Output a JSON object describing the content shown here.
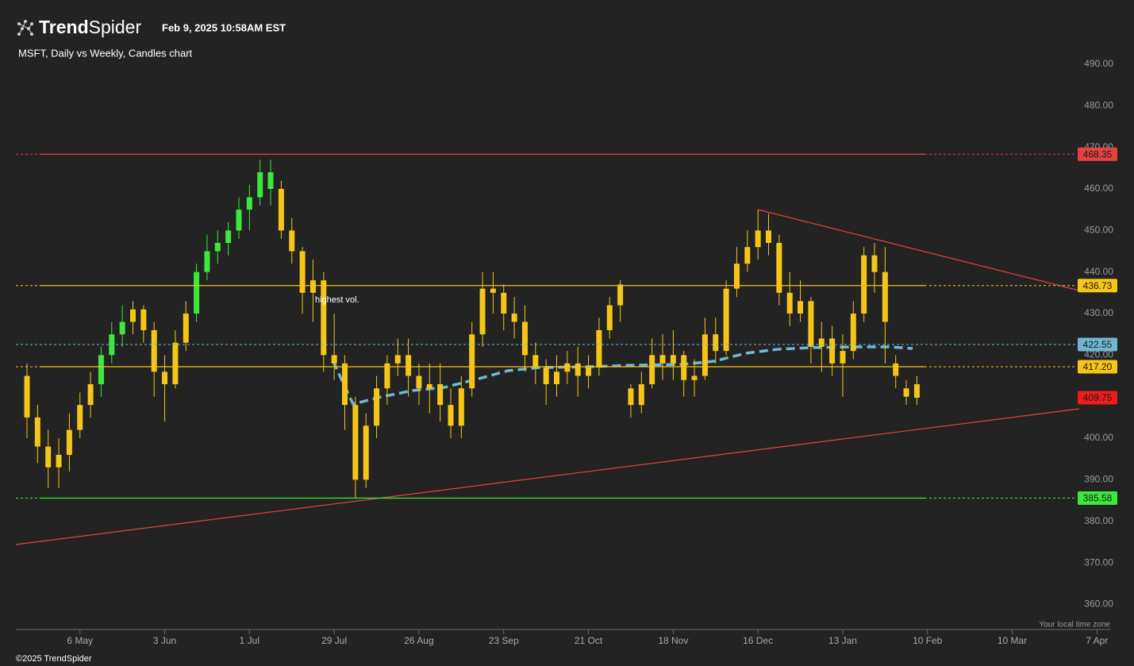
{
  "header": {
    "brand_bold": "Trend",
    "brand_light": "Spider",
    "timestamp": "Feb 9, 2025 10:58AM EST",
    "footer": "©2025 TrendSpider"
  },
  "chart_data": {
    "type": "candlestick",
    "title": "MSFT, Daily vs Weekly, Candles chart",
    "annotation": "highest vol.",
    "timezone_note": "Your local time zone",
    "categories": [
      null,
      null,
      null,
      null,
      null,
      "6 May",
      null,
      null,
      null,
      null,
      null,
      null,
      null,
      "3 Jun",
      null,
      null,
      null,
      null,
      null,
      null,
      null,
      "1 Jul",
      null,
      null,
      null,
      null,
      null,
      null,
      null,
      "29 Jul",
      null,
      null,
      null,
      null,
      null,
      null,
      null,
      "26 Aug",
      null,
      null,
      null,
      null,
      null,
      null,
      null,
      "23 Sep",
      null,
      null,
      null,
      null,
      null,
      null,
      null,
      "21 Oct",
      null,
      null,
      null,
      null,
      null,
      null,
      null,
      "18 Nov",
      null,
      null,
      null,
      null,
      null,
      null,
      null,
      "16 Dec",
      null,
      null,
      null,
      null,
      null,
      null,
      null,
      "13 Jan",
      null,
      null,
      null,
      null,
      null,
      null,
      null,
      "10 Feb",
      null,
      null,
      null,
      null,
      null,
      null,
      null,
      "10 Mar",
      null,
      null,
      null,
      null,
      null,
      null,
      null,
      "7 Apr"
    ],
    "open": [
      415,
      405,
      398,
      393,
      396,
      402,
      408,
      413,
      420,
      425,
      428,
      431,
      426,
      416,
      413,
      423,
      430,
      440,
      445,
      447,
      450,
      455,
      458,
      464,
      460,
      450,
      445,
      435,
      438,
      420,
      418,
      408,
      390,
      403,
      412,
      418,
      420,
      415,
      412,
      413,
      408,
      403,
      412,
      425,
      436,
      435,
      430,
      428,
      420,
      417,
      413,
      416,
      418,
      415,
      417,
      426,
      432,
      412,
      408,
      413,
      420,
      418,
      420,
      414,
      415,
      425,
      421,
      436,
      442,
      446,
      450,
      447,
      435,
      430,
      433,
      422,
      424,
      418,
      421,
      430,
      444,
      440,
      415,
      412,
      413,
      null,
      null,
      null,
      null,
      null,
      null,
      null,
      null,
      null,
      null,
      null,
      null,
      null,
      null,
      null,
      null,
      null
    ],
    "high": [
      418,
      408,
      402,
      400,
      406,
      411,
      416,
      422,
      428,
      432,
      433,
      432,
      428,
      420,
      426,
      433,
      442,
      449,
      450,
      452,
      458,
      461,
      467,
      467,
      462,
      453,
      446,
      443,
      440,
      430,
      420,
      410,
      406,
      415,
      420,
      424,
      424,
      418,
      418,
      418,
      412,
      415,
      428,
      440,
      440,
      437,
      434,
      432,
      423,
      419,
      420,
      421,
      422,
      420,
      429,
      434,
      438,
      413,
      416,
      424,
      425,
      426,
      421,
      419,
      429,
      429,
      438,
      446,
      450,
      455,
      454,
      449,
      440,
      438,
      434,
      428,
      427,
      425,
      433,
      446,
      447,
      446,
      420,
      414,
      415,
      null,
      null,
      null,
      null,
      null,
      null,
      null,
      null,
      null,
      null,
      null,
      null,
      null,
      null,
      null,
      null,
      null
    ],
    "low": [
      400,
      394,
      388,
      388,
      392,
      400,
      405,
      410,
      418,
      422,
      425,
      423,
      410,
      404,
      412,
      421,
      428,
      438,
      442,
      444,
      448,
      450,
      456,
      456,
      448,
      442,
      430,
      428,
      416,
      414,
      402,
      385.58,
      388,
      400,
      408,
      415,
      410,
      408,
      406,
      404,
      400,
      400,
      410,
      422,
      430,
      426,
      424,
      416,
      413,
      408,
      410,
      413,
      410,
      412,
      415,
      424,
      428,
      405,
      406,
      412,
      414,
      414,
      410,
      410,
      414,
      418,
      420,
      434,
      440,
      443,
      444,
      432,
      427,
      428,
      418,
      416,
      415,
      410,
      419,
      428,
      435,
      418,
      412,
      408,
      408,
      null,
      null,
      null,
      null,
      null,
      null,
      null,
      null,
      null,
      null,
      null,
      null,
      null,
      null,
      null,
      null,
      null
    ],
    "close": [
      405,
      398,
      393,
      396,
      402,
      408,
      413,
      420,
      425,
      428,
      431,
      426,
      416,
      413,
      423,
      430,
      440,
      445,
      447,
      450,
      455,
      458,
      464,
      460,
      450,
      445,
      435,
      438,
      420,
      418,
      408,
      390,
      403,
      412,
      418,
      420,
      415,
      412,
      413,
      408,
      403,
      412,
      425,
      436,
      435,
      430,
      428,
      420,
      417,
      413,
      416,
      418,
      415,
      417,
      426,
      432,
      437,
      408,
      413,
      420,
      418,
      420,
      414,
      415,
      425,
      421,
      436,
      442,
      446,
      450,
      447,
      435,
      430,
      433,
      422,
      424,
      418,
      421,
      430,
      444,
      440,
      428,
      418,
      410,
      409.75,
      null,
      null,
      null,
      null,
      null,
      null,
      null,
      null,
      null,
      null,
      null,
      null,
      null,
      null,
      null,
      null,
      null
    ],
    "colors": [
      "#f5c518",
      "#f5c518",
      "#f5c518",
      "#f5c518",
      "#f5c518",
      "#f5c518",
      "#f5c518",
      "#3de83d",
      "#3de83d",
      "#3de83d",
      "#f5c518",
      "#f5c518",
      "#f5c518",
      "#f5c518",
      "#f5c518",
      "#f5c518",
      "#3de83d",
      "#3de83d",
      "#3de83d",
      "#3de83d",
      "#3de83d",
      "#3de83d",
      "#3de83d",
      "#3de83d",
      "#f5c518",
      "#f5c518",
      "#f5c518",
      "#f5c518",
      "#f5c518",
      "#f5c518",
      "#f5c518",
      "#f5c518",
      "#f5c518",
      "#f5c518",
      "#f5c518",
      "#f5c518",
      "#f5c518",
      "#f5c518",
      "#f5c518",
      "#f5c518",
      "#f5c518",
      "#f5c518",
      "#f5c518",
      "#f5c518",
      "#f5c518",
      "#f5c518",
      "#f5c518",
      "#f5c518",
      "#f5c518",
      "#f5c518",
      "#f5c518",
      "#f5c518",
      "#f5c518",
      "#f5c518",
      "#f5c518",
      "#f5c518",
      "#f5c518",
      "#f5c518",
      "#f5c518",
      "#f5c518",
      "#f5c518",
      "#f5c518",
      "#f5c518",
      "#f5c518",
      "#f5c518",
      "#f5c518",
      "#f5c518",
      "#f5c518",
      "#f5c518",
      "#f5c518",
      "#f5c518",
      "#f5c518",
      "#f5c518",
      "#f5c518",
      "#f5c518",
      "#f5c518",
      "#f5c518",
      "#f5c518",
      "#f5c518",
      "#f5c518",
      "#f5c518",
      "#f5c518",
      "#f5c518",
      "#f5c518",
      "#f5c518",
      null,
      null,
      null,
      null,
      null,
      null,
      null,
      null,
      null,
      null,
      null,
      null,
      null,
      null,
      null,
      null,
      null
    ],
    "ylim": [
      357.6,
      494
    ],
    "yticks": [
      {
        "value": 360,
        "label": "360.00"
      },
      {
        "value": 370,
        "label": "370.00"
      },
      {
        "value": 380,
        "label": "380.00"
      },
      {
        "value": 390,
        "label": "390.00"
      },
      {
        "value": 400,
        "label": "400.00"
      },
      {
        "value": 410,
        "label": "410.00"
      },
      {
        "value": 420,
        "label": "420.00"
      },
      {
        "value": 430,
        "label": "430.00"
      },
      {
        "value": 440,
        "label": "440.00"
      },
      {
        "value": 450,
        "label": "450.00"
      },
      {
        "value": 460,
        "label": "460.00"
      },
      {
        "value": 470,
        "label": "470.00"
      },
      {
        "value": 480,
        "label": "480.00"
      },
      {
        "value": 490,
        "label": "490.00"
      }
    ],
    "levels": [
      {
        "value": 468.35,
        "color": "#e5423f",
        "line": "solid"
      },
      {
        "value": 436.73,
        "color": "#f5c518",
        "line": "solid"
      },
      {
        "value": 422.55,
        "color": "#6fb8d2",
        "line": "dashed"
      },
      {
        "value": {
          "value": 417.2,
          "label": "417.20"
        },
        "color": "#f5c518",
        "line": "solid"
      },
      {
        "value": 409.75,
        "color": "#ee1c1c",
        "line": "none"
      },
      {
        "value": 385.58,
        "color": "#3de83d",
        "line": "solid"
      }
    ]
  }
}
